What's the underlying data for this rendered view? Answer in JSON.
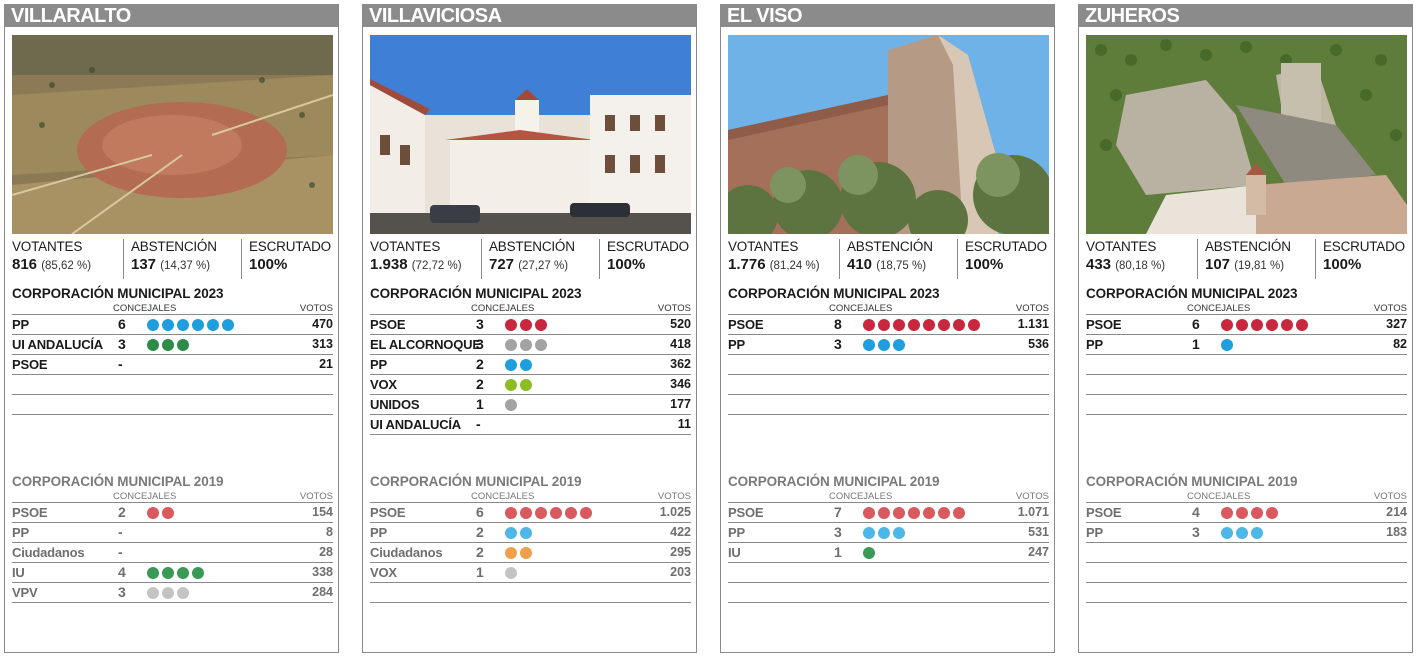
{
  "colors": {
    "header_bg": "#8c8b8c",
    "PSOE": "#c8283e",
    "PP": "#1f9ede",
    "IU": "#2e8b47",
    "UI ANDALUCÍA": "#2e8b47",
    "VOX": "#8dbd24",
    "EL ALCORNOQUE": "#a3a3a3",
    "UNIDOS": "#a3a3a3",
    "VPV": "#bdbdbd",
    "Ciudadanos": "#f0963a"
  },
  "labels": {
    "votantes": "VOTANTES",
    "abstencion": "ABSTENCIÓN",
    "escrutado": "ESCRUTADO",
    "corp2023": "CORPORACIÓN MUNICIPAL 2023",
    "corp2019": "CORPORACIÓN MUNICIPAL 2019",
    "concejales": "CONCEJALES",
    "votos": "VOTOS"
  },
  "towns": [
    {
      "name": "VILLARALTO",
      "photo": "aerial-town-photo",
      "votantes": "816",
      "votantes_pct": "(85,62 %)",
      "abstencion": "137",
      "abstencion_pct": "(14,37 %)",
      "escrutado": "100%",
      "rows2023": [
        {
          "party": "PP",
          "seats": "6",
          "dots": 6,
          "color": "#1f9ede",
          "votes": "470"
        },
        {
          "party": "UI ANDALUCÍA",
          "seats": "3",
          "dots": 3,
          "color": "#2e8b47",
          "votes": "313"
        },
        {
          "party": "PSOE",
          "seats": "-",
          "dots": 0,
          "color": "#c8283e",
          "votes": "21"
        },
        {
          "party": "",
          "seats": "",
          "dots": 0,
          "color": "",
          "votes": ""
        },
        {
          "party": "",
          "seats": "",
          "dots": 0,
          "color": "",
          "votes": ""
        }
      ],
      "rows2019": [
        {
          "party": "PSOE",
          "seats": "2",
          "dots": 2,
          "color": "#d85a5e",
          "votes": "154"
        },
        {
          "party": "PP",
          "seats": "-",
          "dots": 0,
          "color": "#1f9ede",
          "votes": "8"
        },
        {
          "party": "Ciudadanos",
          "seats": "-",
          "dots": 0,
          "color": "#f0963a",
          "votes": "28"
        },
        {
          "party": "IU",
          "seats": "4",
          "dots": 4,
          "color": "#3a9a55",
          "votes": "338"
        },
        {
          "party": "VPV",
          "seats": "3",
          "dots": 3,
          "color": "#c4c4c4",
          "votes": "284"
        }
      ]
    },
    {
      "name": "VILLAVICIOSA",
      "photo": "town-square-photo",
      "votantes": "1.938",
      "votantes_pct": "(72,72 %)",
      "abstencion": "727",
      "abstencion_pct": "(27,27 %)",
      "escrutado": "100%",
      "rows2023": [
        {
          "party": "PSOE",
          "seats": "3",
          "dots": 3,
          "color": "#c8283e",
          "votes": "520"
        },
        {
          "party": "EL ALCORNOQUE",
          "seats": "3",
          "dots": 3,
          "color": "#a3a3a3",
          "votes": "418"
        },
        {
          "party": "PP",
          "seats": "2",
          "dots": 2,
          "color": "#1f9ede",
          "votes": "362"
        },
        {
          "party": "VOX",
          "seats": "2",
          "dots": 2,
          "color": "#8dbd24",
          "votes": "346"
        },
        {
          "party": "UNIDOS",
          "seats": "1",
          "dots": 1,
          "color": "#a3a3a3",
          "votes": "177"
        },
        {
          "party": "UI ANDALUCÍA",
          "seats": "-",
          "dots": 0,
          "color": "#2e8b47",
          "votes": "11"
        }
      ],
      "rows2019": [
        {
          "party": "PSOE",
          "seats": "6",
          "dots": 6,
          "color": "#d85a5e",
          "votes": "1.025"
        },
        {
          "party": "PP",
          "seats": "2",
          "dots": 2,
          "color": "#4fb7e8",
          "votes": "422"
        },
        {
          "party": "Ciudadanos",
          "seats": "2",
          "dots": 2,
          "color": "#f0a04b",
          "votes": "295"
        },
        {
          "party": "VOX",
          "seats": "1",
          "dots": 1,
          "color": "#c4c4c4",
          "votes": "203"
        },
        {
          "party": "",
          "seats": "",
          "dots": 0,
          "color": "",
          "votes": ""
        }
      ]
    },
    {
      "name": "EL VISO",
      "photo": "castle-tower-photo",
      "votantes": "1.776",
      "votantes_pct": "(81,24 %)",
      "abstencion": "410",
      "abstencion_pct": "(18,75 %)",
      "escrutado": "100%",
      "rows2023": [
        {
          "party": "PSOE",
          "seats": "8",
          "dots": 8,
          "color": "#c8283e",
          "votes": "1.131"
        },
        {
          "party": "PP",
          "seats": "3",
          "dots": 3,
          "color": "#1f9ede",
          "votes": "536"
        },
        {
          "party": "",
          "seats": "",
          "dots": 0,
          "color": "",
          "votes": ""
        },
        {
          "party": "",
          "seats": "",
          "dots": 0,
          "color": "",
          "votes": ""
        },
        {
          "party": "",
          "seats": "",
          "dots": 0,
          "color": "",
          "votes": ""
        }
      ],
      "rows2019": [
        {
          "party": "PSOE",
          "seats": "7",
          "dots": 7,
          "color": "#d85a5e",
          "votes": "1.071"
        },
        {
          "party": "PP",
          "seats": "3",
          "dots": 3,
          "color": "#4fb7e8",
          "votes": "531"
        },
        {
          "party": "IU",
          "seats": "1",
          "dots": 1,
          "color": "#3a9a55",
          "votes": "247"
        },
        {
          "party": "",
          "seats": "",
          "dots": 0,
          "color": "",
          "votes": ""
        },
        {
          "party": "",
          "seats": "",
          "dots": 0,
          "color": "",
          "votes": ""
        }
      ]
    },
    {
      "name": "ZUHEROS",
      "photo": "castle-aerial-photo",
      "votantes": "433",
      "votantes_pct": "(80,18 %)",
      "abstencion": "107",
      "abstencion_pct": "(19,81 %)",
      "escrutado": "100%",
      "rows2023": [
        {
          "party": "PSOE",
          "seats": "6",
          "dots": 6,
          "color": "#c8283e",
          "votes": "327"
        },
        {
          "party": "PP",
          "seats": "1",
          "dots": 1,
          "color": "#1f9ede",
          "votes": "82"
        },
        {
          "party": "",
          "seats": "",
          "dots": 0,
          "color": "",
          "votes": ""
        },
        {
          "party": "",
          "seats": "",
          "dots": 0,
          "color": "",
          "votes": ""
        },
        {
          "party": "",
          "seats": "",
          "dots": 0,
          "color": "",
          "votes": ""
        }
      ],
      "rows2019": [
        {
          "party": "PSOE",
          "seats": "4",
          "dots": 4,
          "color": "#d85a5e",
          "votes": "214"
        },
        {
          "party": "PP",
          "seats": "3",
          "dots": 3,
          "color": "#4fb7e8",
          "votes": "183"
        },
        {
          "party": "",
          "seats": "",
          "dots": 0,
          "color": "",
          "votes": ""
        },
        {
          "party": "",
          "seats": "",
          "dots": 0,
          "color": "",
          "votes": ""
        },
        {
          "party": "",
          "seats": "",
          "dots": 0,
          "color": "",
          "votes": ""
        }
      ]
    }
  ]
}
